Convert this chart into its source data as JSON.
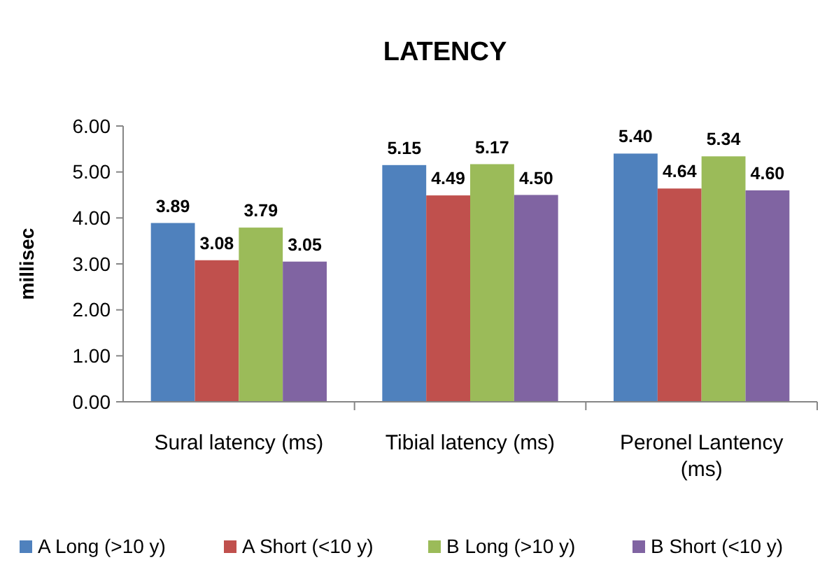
{
  "chart_data": {
    "type": "bar",
    "title": "LATENCY",
    "ylabel": "millisec",
    "categories": [
      "Sural latency (ms)",
      "Tibial latency (ms)",
      "Peronel Lantency (ms)"
    ],
    "series": [
      {
        "name": "A Long (>10 y)",
        "color": "#4f81bd",
        "values": [
          3.89,
          5.15,
          5.4
        ],
        "value_labels": [
          "3.89",
          "5.15",
          "5.40"
        ]
      },
      {
        "name": "A Short (<10 y)",
        "color": "#c0504d",
        "values": [
          3.08,
          4.49,
          4.64
        ],
        "value_labels": [
          "3.08",
          "4.49",
          "4.64"
        ]
      },
      {
        "name": "B Long (>10 y)",
        "color": "#9bbb59",
        "values": [
          3.79,
          5.17,
          5.34
        ],
        "value_labels": [
          "3.79",
          "5.17",
          "5.34"
        ]
      },
      {
        "name": "B Short (<10 y)",
        "color": "#8064a2",
        "values": [
          3.05,
          4.5,
          4.6
        ],
        "value_labels": [
          "3.05",
          "4.50",
          "4.60"
        ]
      }
    ],
    "ylim": [
      0,
      6
    ],
    "yticks": [
      {
        "value": 0,
        "label": "0.00"
      },
      {
        "value": 1,
        "label": "1.00"
      },
      {
        "value": 2,
        "label": "2.00"
      },
      {
        "value": 3,
        "label": "3.00"
      },
      {
        "value": 4,
        "label": "4.00"
      },
      {
        "value": 5,
        "label": "5.00"
      },
      {
        "value": 6,
        "label": "6.00"
      }
    ],
    "legend": "bottom",
    "grid": false
  }
}
